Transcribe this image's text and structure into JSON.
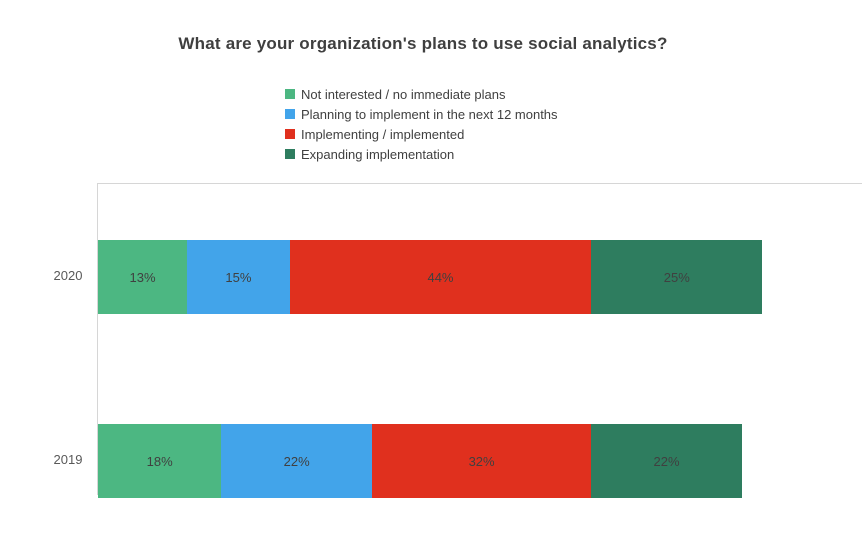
{
  "title": "What are your organization's plans to use social analytics?",
  "legend": [
    {
      "label": "Not interested / no immediate plans",
      "color": "#4cb782"
    },
    {
      "label": "Planning to implement in the next 12 months",
      "color": "#42a4ea"
    },
    {
      "label": "Implementing / implemented",
      "color": "#e0301e"
    },
    {
      "label": "Expanding implementation",
      "color": "#2e7d5f"
    }
  ],
  "chart_data": {
    "type": "bar",
    "orientation": "horizontal-stacked",
    "title": "What are your organization's plans to use social analytics?",
    "categories": [
      "2020",
      "2019"
    ],
    "series": [
      {
        "name": "Not interested / no immediate plans",
        "color": "#4cb782",
        "values": [
          13,
          18
        ]
      },
      {
        "name": "Planning to implement in the next 12 months",
        "color": "#42a4ea",
        "values": [
          15,
          22
        ]
      },
      {
        "name": "Implementing / implemented",
        "color": "#e0301e",
        "values": [
          44,
          32
        ]
      },
      {
        "name": "Expanding implementation",
        "color": "#2e7d5f",
        "values": [
          25,
          22
        ]
      }
    ],
    "value_suffix": "%",
    "xlim": [
      0,
      100
    ],
    "grid": false,
    "legend_position": "top",
    "data_labels": "inside"
  }
}
